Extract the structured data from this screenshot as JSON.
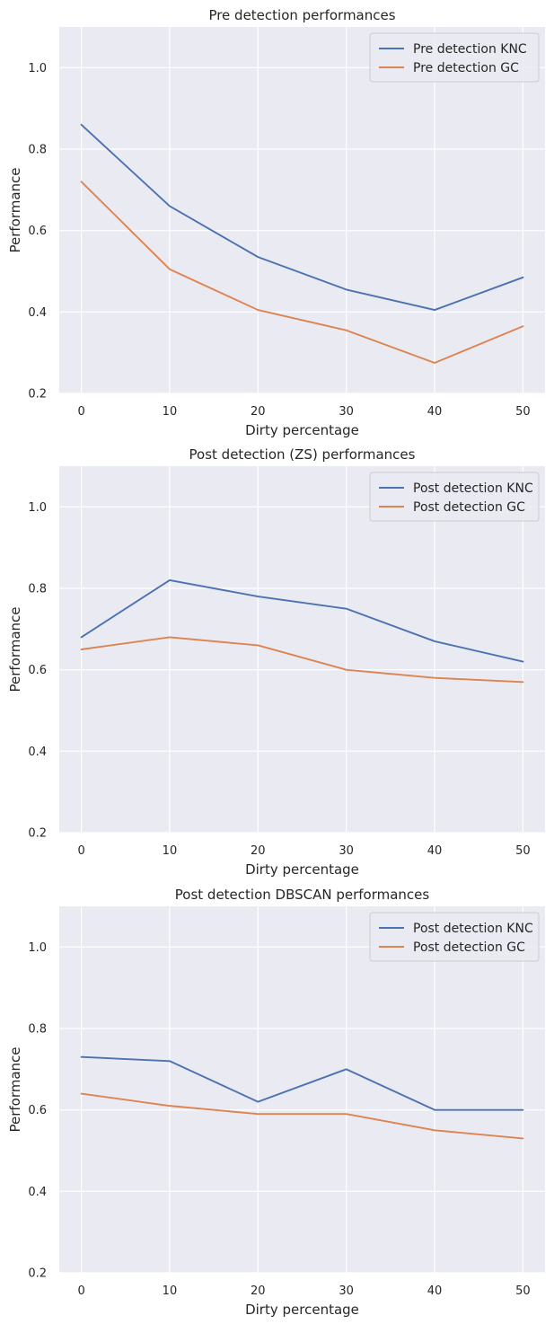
{
  "chart_data": [
    {
      "type": "line",
      "title": "Pre detection performances",
      "xlabel": "Dirty percentage",
      "ylabel": "Performance",
      "x": [
        0,
        10,
        20,
        30,
        40,
        50
      ],
      "xticks": [
        "0",
        "10",
        "20",
        "30",
        "40",
        "50"
      ],
      "yticks": [
        "0.2",
        "0.4",
        "0.6",
        "0.8",
        "1.0"
      ],
      "xlim": [
        -2.5,
        52.5
      ],
      "ylim": [
        0.2,
        1.1
      ],
      "grid": true,
      "legend": "top-right",
      "series": [
        {
          "name": "Pre detection KNC",
          "color": "#4c72b0",
          "values": [
            0.86,
            0.66,
            0.535,
            0.455,
            0.405,
            0.485
          ]
        },
        {
          "name": "Pre detection GC",
          "color": "#dd8452",
          "values": [
            0.72,
            0.505,
            0.405,
            0.355,
            0.275,
            0.365
          ]
        }
      ]
    },
    {
      "type": "line",
      "title": "Post detection (ZS) performances",
      "xlabel": "Dirty percentage",
      "ylabel": "Performance",
      "x": [
        0,
        10,
        20,
        30,
        40,
        50
      ],
      "xticks": [
        "0",
        "10",
        "20",
        "30",
        "40",
        "50"
      ],
      "yticks": [
        "0.2",
        "0.4",
        "0.6",
        "0.8",
        "1.0"
      ],
      "xlim": [
        -2.5,
        52.5
      ],
      "ylim": [
        0.2,
        1.1
      ],
      "grid": true,
      "legend": "top-right",
      "series": [
        {
          "name": "Post detection KNC",
          "color": "#4c72b0",
          "values": [
            0.68,
            0.82,
            0.78,
            0.75,
            0.67,
            0.62
          ]
        },
        {
          "name": "Post detection GC",
          "color": "#dd8452",
          "values": [
            0.65,
            0.68,
            0.66,
            0.6,
            0.58,
            0.57
          ]
        }
      ]
    },
    {
      "type": "line",
      "title": "Post detection DBSCAN performances",
      "xlabel": "Dirty percentage",
      "ylabel": "Performance",
      "x": [
        0,
        10,
        20,
        30,
        40,
        50
      ],
      "xticks": [
        "0",
        "10",
        "20",
        "30",
        "40",
        "50"
      ],
      "yticks": [
        "0.2",
        "0.4",
        "0.6",
        "0.8",
        "1.0"
      ],
      "xlim": [
        -2.5,
        52.5
      ],
      "ylim": [
        0.2,
        1.1
      ],
      "grid": true,
      "legend": "top-right",
      "series": [
        {
          "name": "Post detection KNC",
          "color": "#4c72b0",
          "values": [
            0.73,
            0.72,
            0.62,
            0.7,
            0.6,
            0.6
          ]
        },
        {
          "name": "Post detection GC",
          "color": "#dd8452",
          "values": [
            0.64,
            0.61,
            0.59,
            0.59,
            0.55,
            0.53
          ]
        }
      ]
    }
  ]
}
